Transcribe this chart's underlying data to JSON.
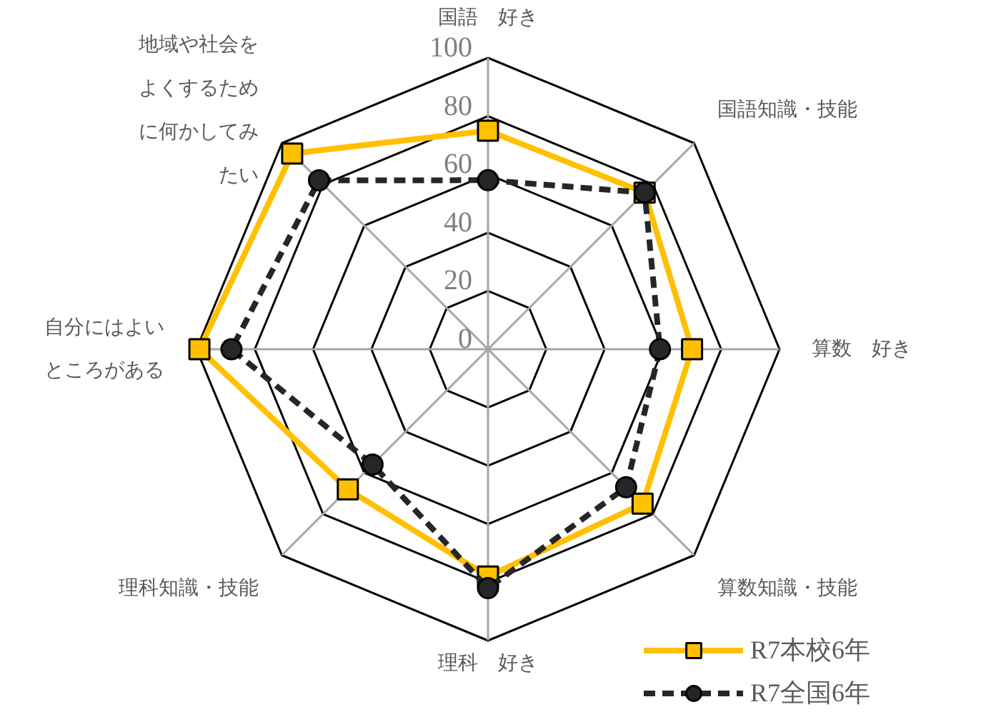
{
  "chart_data": {
    "type": "radar",
    "categories": [
      "国語　好き",
      "国語知識・技能",
      "算数　好き",
      "算数知識・技能",
      "理科　好き",
      "理科知識・技能",
      "自分にはよいところがある",
      "地域や社会をよくするために何かしてみたい"
    ],
    "series": [
      {
        "name": "R7本校6年",
        "color": "#ffc000",
        "marker": "square",
        "line_style": "solid",
        "values": [
          75,
          76,
          70,
          75,
          78,
          68,
          99,
          95
        ]
      },
      {
        "name": "R7全国6年",
        "color": "#262626",
        "marker": "circle",
        "line_style": "dashed",
        "values": [
          58,
          76,
          59,
          67,
          82,
          56,
          88,
          82
        ]
      }
    ],
    "ylim": [
      0,
      100
    ],
    "yticks": [
      0,
      20,
      40,
      60,
      80,
      100
    ],
    "grid": true,
    "legend": "bottom right"
  }
}
